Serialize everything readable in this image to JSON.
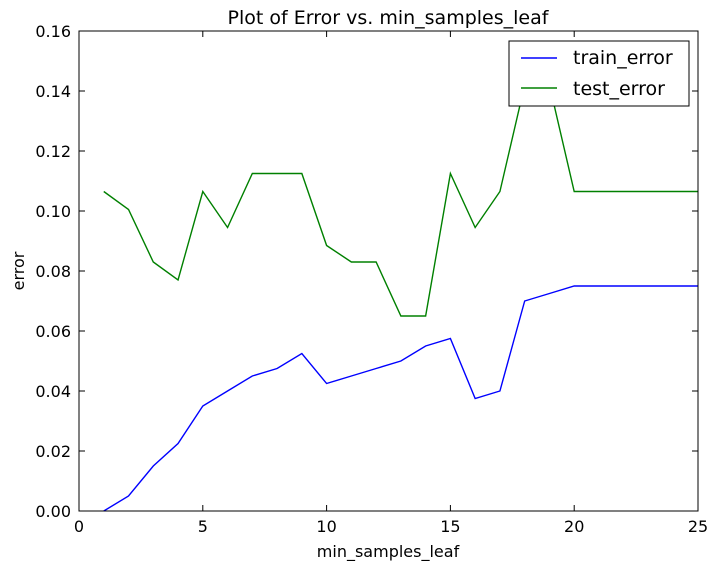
{
  "chart_data": {
    "type": "line",
    "title": "Plot of Error vs. min_samples_leaf",
    "xlabel": "min_samples_leaf",
    "ylabel": "error",
    "xlim": [
      0,
      25
    ],
    "ylim": [
      0,
      0.16
    ],
    "xticks": [
      "0",
      "5",
      "10",
      "15",
      "20",
      "25"
    ],
    "yticks": [
      "0.00",
      "0.02",
      "0.04",
      "0.06",
      "0.08",
      "0.10",
      "0.12",
      "0.14",
      "0.16"
    ],
    "grid": false,
    "legend_position": "top-right",
    "x": [
      1,
      2,
      3,
      4,
      5,
      6,
      7,
      8,
      9,
      10,
      11,
      12,
      13,
      14,
      15,
      16,
      17,
      18,
      19,
      20,
      21,
      22,
      23,
      24,
      25
    ],
    "series": [
      {
        "name": "train_error",
        "color": "#0000ff",
        "values": [
          0.0,
          0.005,
          0.015,
          0.0225,
          0.035,
          0.04,
          0.045,
          0.0475,
          0.0525,
          0.0425,
          0.045,
          0.0475,
          0.05,
          0.055,
          0.0575,
          0.0375,
          0.04,
          0.07,
          0.0725,
          0.075,
          0.075,
          0.075,
          0.075,
          0.075,
          0.075
        ]
      },
      {
        "name": "test_error",
        "color": "#008000",
        "values": [
          0.1065,
          0.1005,
          0.083,
          0.077,
          0.1065,
          0.0945,
          0.1125,
          0.1125,
          0.1125,
          0.0885,
          0.083,
          0.083,
          0.065,
          0.065,
          0.1125,
          0.0945,
          0.1065,
          0.142,
          0.142,
          0.1065,
          0.1065,
          0.1065,
          0.1065,
          0.1065,
          0.1065
        ]
      }
    ]
  }
}
